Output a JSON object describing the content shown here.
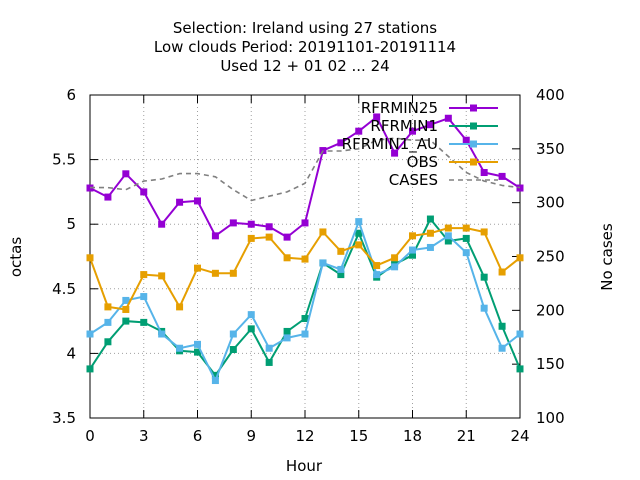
{
  "title_lines": [
    "Selection: Ireland using    27 stations",
    "Low clouds   Period: 20191101-20191114",
    "Used  12 + 01 02 ... 24"
  ],
  "chart_data": {
    "type": "line",
    "xlabel": "Hour",
    "ylabel": "octas",
    "y2label": "No cases",
    "xlim": [
      0,
      24
    ],
    "ylim": [
      3.5,
      6
    ],
    "y2lim": [
      100,
      400
    ],
    "xticks": [
      0,
      3,
      6,
      9,
      12,
      15,
      18,
      21,
      24
    ],
    "yticks": [
      3.5,
      4,
      4.5,
      5,
      5.5,
      6
    ],
    "yticklabels": [
      "3.5",
      "4",
      "4.5",
      "5",
      "5.5",
      "6"
    ],
    "y2ticks": [
      100,
      150,
      200,
      250,
      300,
      350,
      400
    ],
    "grid": true,
    "legend_position": "top-right",
    "x": [
      0,
      1,
      2,
      3,
      4,
      5,
      6,
      7,
      8,
      9,
      10,
      11,
      12,
      13,
      14,
      15,
      16,
      17,
      18,
      19,
      20,
      21,
      22,
      23,
      24
    ],
    "series": [
      {
        "name": "RFRMIN25",
        "color": "#9400d3",
        "axis": "y1",
        "marker": true,
        "values": [
          5.28,
          5.21,
          5.39,
          5.25,
          5.0,
          5.17,
          5.18,
          4.91,
          5.01,
          5.0,
          4.98,
          4.9,
          5.01,
          5.57,
          5.63,
          5.72,
          5.83,
          5.55,
          5.72,
          5.77,
          5.82,
          5.65,
          5.4,
          5.37,
          5.28
        ]
      },
      {
        "name": "RFRMIN1",
        "color": "#009e73",
        "axis": "y1",
        "marker": true,
        "values": [
          3.88,
          4.09,
          4.25,
          4.24,
          4.17,
          4.02,
          4.01,
          3.83,
          4.03,
          4.19,
          3.93,
          4.17,
          4.27,
          4.7,
          4.61,
          4.93,
          4.59,
          4.69,
          4.76,
          5.04,
          4.87,
          4.89,
          4.59,
          4.21,
          3.88
        ]
      },
      {
        "name": "RFRMIN1_AU",
        "color": "#56b4e9",
        "axis": "y1",
        "marker": true,
        "values": [
          4.15,
          4.24,
          4.41,
          4.44,
          4.15,
          4.04,
          4.07,
          3.79,
          4.15,
          4.3,
          4.04,
          4.12,
          4.15,
          4.7,
          4.65,
          5.02,
          4.61,
          4.67,
          4.8,
          4.82,
          4.91,
          4.78,
          4.35,
          4.04,
          4.15
        ]
      },
      {
        "name": "OBS",
        "color": "#e69f00",
        "axis": "y1",
        "marker": true,
        "values": [
          4.74,
          4.36,
          4.34,
          4.61,
          4.6,
          4.36,
          4.66,
          4.62,
          4.62,
          4.89,
          4.9,
          4.74,
          4.73,
          4.94,
          4.79,
          4.84,
          4.68,
          4.74,
          4.91,
          4.93,
          4.97,
          4.97,
          4.94,
          4.63,
          4.74
        ]
      },
      {
        "name": "CASES",
        "color": "#808080",
        "axis": "y2",
        "marker": false,
        "dashed": true,
        "values": [
          314,
          314,
          312,
          320,
          322,
          327,
          327,
          324,
          312,
          302,
          306,
          310,
          318,
          348,
          348,
          350,
          358,
          360,
          358,
          358,
          343,
          328,
          320,
          316,
          314
        ]
      }
    ]
  }
}
